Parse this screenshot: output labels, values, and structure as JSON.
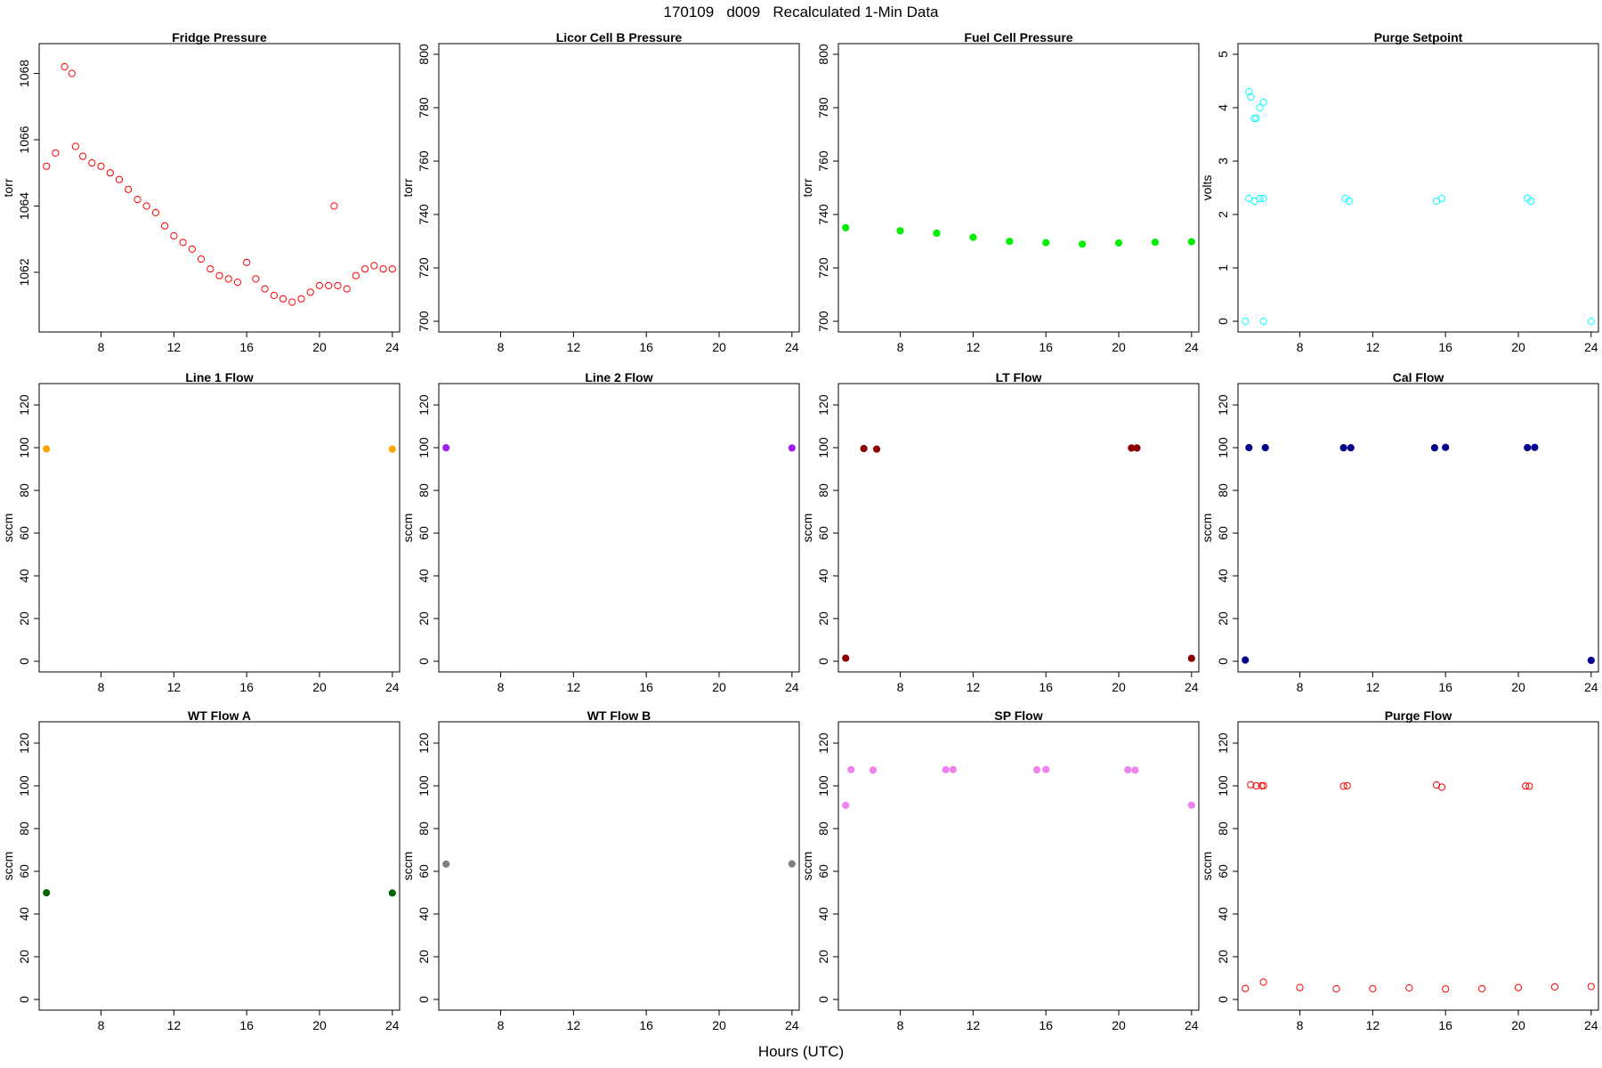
{
  "figure": {
    "title": "170109   d009   Recalculated 1-Min Data",
    "xlabel": "Hours (UTC)"
  },
  "chart_data": [
    {
      "id": "fridge-pressure",
      "type": "scatter",
      "title": "Fridge Pressure",
      "ylabel": "torr",
      "xlim": [
        4.6,
        24.4
      ],
      "xticks": [
        8,
        12,
        16,
        20,
        24
      ],
      "ylim": [
        1060.2,
        1068.9
      ],
      "yticks": [
        1062,
        1064,
        1066,
        1068
      ],
      "color": "#ff0000",
      "marker": "open-circle",
      "series": [
        {
          "x": [
            5,
            5.5,
            6,
            6.4,
            6.6,
            7,
            7.5,
            8,
            8.5,
            9,
            9.5,
            10,
            10.5,
            11,
            11.5,
            12,
            12.5,
            13,
            13.5,
            14,
            14.5,
            15,
            15.5,
            16,
            16.5,
            17,
            17.5,
            18,
            18.5,
            19,
            19.5,
            20,
            20.5,
            20.8,
            21,
            21.5,
            22,
            22.5,
            23,
            23.5,
            24
          ],
          "y": [
            1065.2,
            1065.6,
            1068.2,
            1068.0,
            1065.8,
            1065.5,
            1065.3,
            1065.2,
            1065.0,
            1064.8,
            1064.5,
            1064.2,
            1064.0,
            1063.8,
            1063.4,
            1063.1,
            1062.9,
            1062.7,
            1062.4,
            1062.1,
            1061.9,
            1061.8,
            1061.7,
            1062.3,
            1061.8,
            1061.5,
            1061.3,
            1061.2,
            1061.1,
            1061.2,
            1061.4,
            1061.6,
            1061.6,
            1064.0,
            1061.6,
            1061.5,
            1061.9,
            1062.1,
            1062.2,
            1062.1,
            1062.1
          ]
        }
      ]
    },
    {
      "id": "licor-cell-b-pressure",
      "type": "scatter",
      "title": "Licor Cell B Pressure",
      "ylabel": "torr",
      "xlim": [
        4.6,
        24.4
      ],
      "xticks": [
        8,
        12,
        16,
        20,
        24
      ],
      "ylim": [
        696,
        804
      ],
      "yticks": [
        700,
        720,
        740,
        760,
        780,
        800
      ],
      "color": "#000000",
      "marker": "open-circle",
      "series": [
        {
          "x": [],
          "y": []
        }
      ]
    },
    {
      "id": "fuel-cell-pressure",
      "type": "scatter",
      "title": "Fuel Cell Pressure",
      "ylabel": "torr",
      "xlim": [
        4.6,
        24.4
      ],
      "xticks": [
        8,
        12,
        16,
        20,
        24
      ],
      "ylim": [
        696,
        804
      ],
      "yticks": [
        700,
        720,
        740,
        760,
        780,
        800
      ],
      "color": "#00ee00",
      "marker": "filled-band",
      "series": [
        {
          "x": [
            5,
            8,
            10,
            12,
            14,
            16,
            18,
            20,
            22,
            24
          ],
          "y": [
            735,
            734,
            733,
            731.5,
            730,
            729.5,
            729,
            729.3,
            729.5,
            729.8
          ]
        }
      ]
    },
    {
      "id": "purge-setpoint",
      "type": "scatter",
      "title": "Purge Setpoint",
      "ylabel": "volts",
      "xlim": [
        4.6,
        24.4
      ],
      "xticks": [
        8,
        12,
        16,
        20,
        24
      ],
      "ylim": [
        -0.2,
        5.2
      ],
      "yticks": [
        0,
        1,
        2,
        3,
        4,
        5
      ],
      "color": "#00ffff",
      "marker": "open-circle",
      "series": [
        {
          "name": "",
          "x": [
            5.2,
            5.3,
            5.5,
            5.6,
            5.8,
            6.0
          ],
          "y": [
            4.3,
            4.2,
            3.8,
            3.8,
            4.0,
            4.1
          ]
        },
        {
          "name": "",
          "x": [
            5.2,
            5.5,
            5.8,
            6.0,
            10.5,
            10.7,
            15.5,
            15.8,
            20.5,
            20.7
          ],
          "y": [
            2.3,
            2.25,
            2.3,
            2.3,
            2.3,
            2.25,
            2.25,
            2.3,
            2.3,
            2.25
          ]
        },
        {
          "name": "",
          "x": [
            5.0,
            6.0,
            24.0
          ],
          "y": [
            0,
            0,
            0
          ]
        }
      ]
    },
    {
      "id": "line-1-flow",
      "type": "scatter",
      "title": "Line 1 Flow",
      "ylabel": "sccm",
      "xlim": [
        4.6,
        24.4
      ],
      "xticks": [
        8,
        12,
        16,
        20,
        24
      ],
      "ylim": [
        -5,
        130
      ],
      "yticks": [
        0,
        20,
        40,
        60,
        80,
        100,
        120
      ],
      "color": "#ffa500",
      "marker": "filled-band",
      "series": [
        {
          "x": [
            5,
            24
          ],
          "y": [
            99.5,
            99.5
          ]
        }
      ]
    },
    {
      "id": "line-2-flow",
      "type": "scatter",
      "title": "Line 2 Flow",
      "ylabel": "sccm",
      "xlim": [
        4.6,
        24.4
      ],
      "xticks": [
        8,
        12,
        16,
        20,
        24
      ],
      "ylim": [
        -5,
        130
      ],
      "yticks": [
        0,
        20,
        40,
        60,
        80,
        100,
        120
      ],
      "color": "#a020f0",
      "marker": "filled-band",
      "series": [
        {
          "x": [
            5,
            24
          ],
          "y": [
            99.8,
            99.8
          ]
        }
      ]
    },
    {
      "id": "lt-flow",
      "type": "scatter",
      "title": "LT Flow",
      "ylabel": "sccm",
      "xlim": [
        4.6,
        24.4
      ],
      "xticks": [
        8,
        12,
        16,
        20,
        24
      ],
      "ylim": [
        -5,
        130
      ],
      "yticks": [
        0,
        20,
        40,
        60,
        80,
        100,
        120
      ],
      "color": "#8b0000",
      "marker": "filled-band",
      "series": [
        {
          "name": "",
          "x": [
            6.0,
            6.7,
            20.7,
            21.0
          ],
          "y": [
            99.5,
            99.5,
            99.8,
            99.8
          ]
        },
        {
          "name": "",
          "x": [
            5,
            24
          ],
          "y": [
            1.5,
            1.5
          ]
        }
      ]
    },
    {
      "id": "cal-flow",
      "type": "scatter",
      "title": "Cal Flow",
      "ylabel": "sccm",
      "xlim": [
        4.6,
        24.4
      ],
      "xticks": [
        8,
        12,
        16,
        20,
        24
      ],
      "ylim": [
        -5,
        130
      ],
      "yticks": [
        0,
        20,
        40,
        60,
        80,
        100,
        120
      ],
      "color": "#00008b",
      "marker": "filled-band",
      "series": [
        {
          "name": "",
          "x": [
            5.2,
            6.1,
            10.4,
            10.8,
            15.4,
            16.0,
            20.5,
            20.9
          ],
          "y": [
            100,
            100,
            100,
            100,
            100,
            100,
            100,
            100
          ]
        },
        {
          "name": "",
          "x": [
            5,
            24
          ],
          "y": [
            0.5,
            0.5
          ]
        }
      ]
    },
    {
      "id": "wt-flow-a",
      "type": "scatter",
      "title": "WT Flow A",
      "ylabel": "sccm",
      "xlim": [
        4.6,
        24.4
      ],
      "xticks": [
        8,
        12,
        16,
        20,
        24
      ],
      "ylim": [
        -5,
        130
      ],
      "yticks": [
        0,
        20,
        40,
        60,
        80,
        100,
        120
      ],
      "color": "#006400",
      "marker": "filled-band",
      "series": [
        {
          "x": [
            5,
            24
          ],
          "y": [
            50,
            50
          ]
        }
      ]
    },
    {
      "id": "wt-flow-b",
      "type": "scatter",
      "title": "WT Flow B",
      "ylabel": "sccm",
      "xlim": [
        4.6,
        24.4
      ],
      "xticks": [
        8,
        12,
        16,
        20,
        24
      ],
      "ylim": [
        -5,
        130
      ],
      "yticks": [
        0,
        20,
        40,
        60,
        80,
        100,
        120
      ],
      "color": "#808080",
      "marker": "filled-band",
      "series": [
        {
          "x": [
            5,
            24
          ],
          "y": [
            63.5,
            63.5
          ]
        }
      ]
    },
    {
      "id": "sp-flow",
      "type": "scatter",
      "title": "SP Flow",
      "ylabel": "sccm",
      "xlim": [
        4.6,
        24.4
      ],
      "xticks": [
        8,
        12,
        16,
        20,
        24
      ],
      "ylim": [
        -5,
        130
      ],
      "yticks": [
        0,
        20,
        40,
        60,
        80,
        100,
        120
      ],
      "color": "#ee82ee",
      "marker": "filled-band",
      "series": [
        {
          "name": "",
          "x": [
            5.3,
            6.5,
            10.5,
            10.9,
            15.5,
            16.0,
            20.5,
            20.9
          ],
          "y": [
            107.5,
            107.5,
            107.5,
            107.5,
            107.5,
            107.5,
            107.5,
            107.5
          ]
        },
        {
          "name": "",
          "x": [
            5,
            24
          ],
          "y": [
            91,
            91
          ]
        }
      ]
    },
    {
      "id": "purge-flow",
      "type": "scatter",
      "title": "Purge Flow",
      "ylabel": "sccm",
      "xlim": [
        4.6,
        24.4
      ],
      "xticks": [
        8,
        12,
        16,
        20,
        24
      ],
      "ylim": [
        -5,
        130
      ],
      "yticks": [
        0,
        20,
        40,
        60,
        80,
        100,
        120
      ],
      "color": "#ff0000",
      "marker": "open-circle",
      "series": [
        {
          "name": "",
          "x": [
            5.3,
            5.6,
            5.9,
            6.0,
            10.4,
            10.6,
            15.5,
            15.8,
            20.4,
            20.6
          ],
          "y": [
            100.5,
            100,
            100,
            100,
            99.8,
            100,
            100.5,
            99.5,
            99.8,
            99.8
          ]
        },
        {
          "name": "",
          "x": [
            5,
            6,
            8,
            10,
            12,
            14,
            16,
            18,
            20,
            22,
            24
          ],
          "y": [
            5,
            8,
            5.5,
            5,
            5.2,
            5.3,
            5,
            5.2,
            5.5,
            6,
            6
          ]
        }
      ]
    }
  ]
}
